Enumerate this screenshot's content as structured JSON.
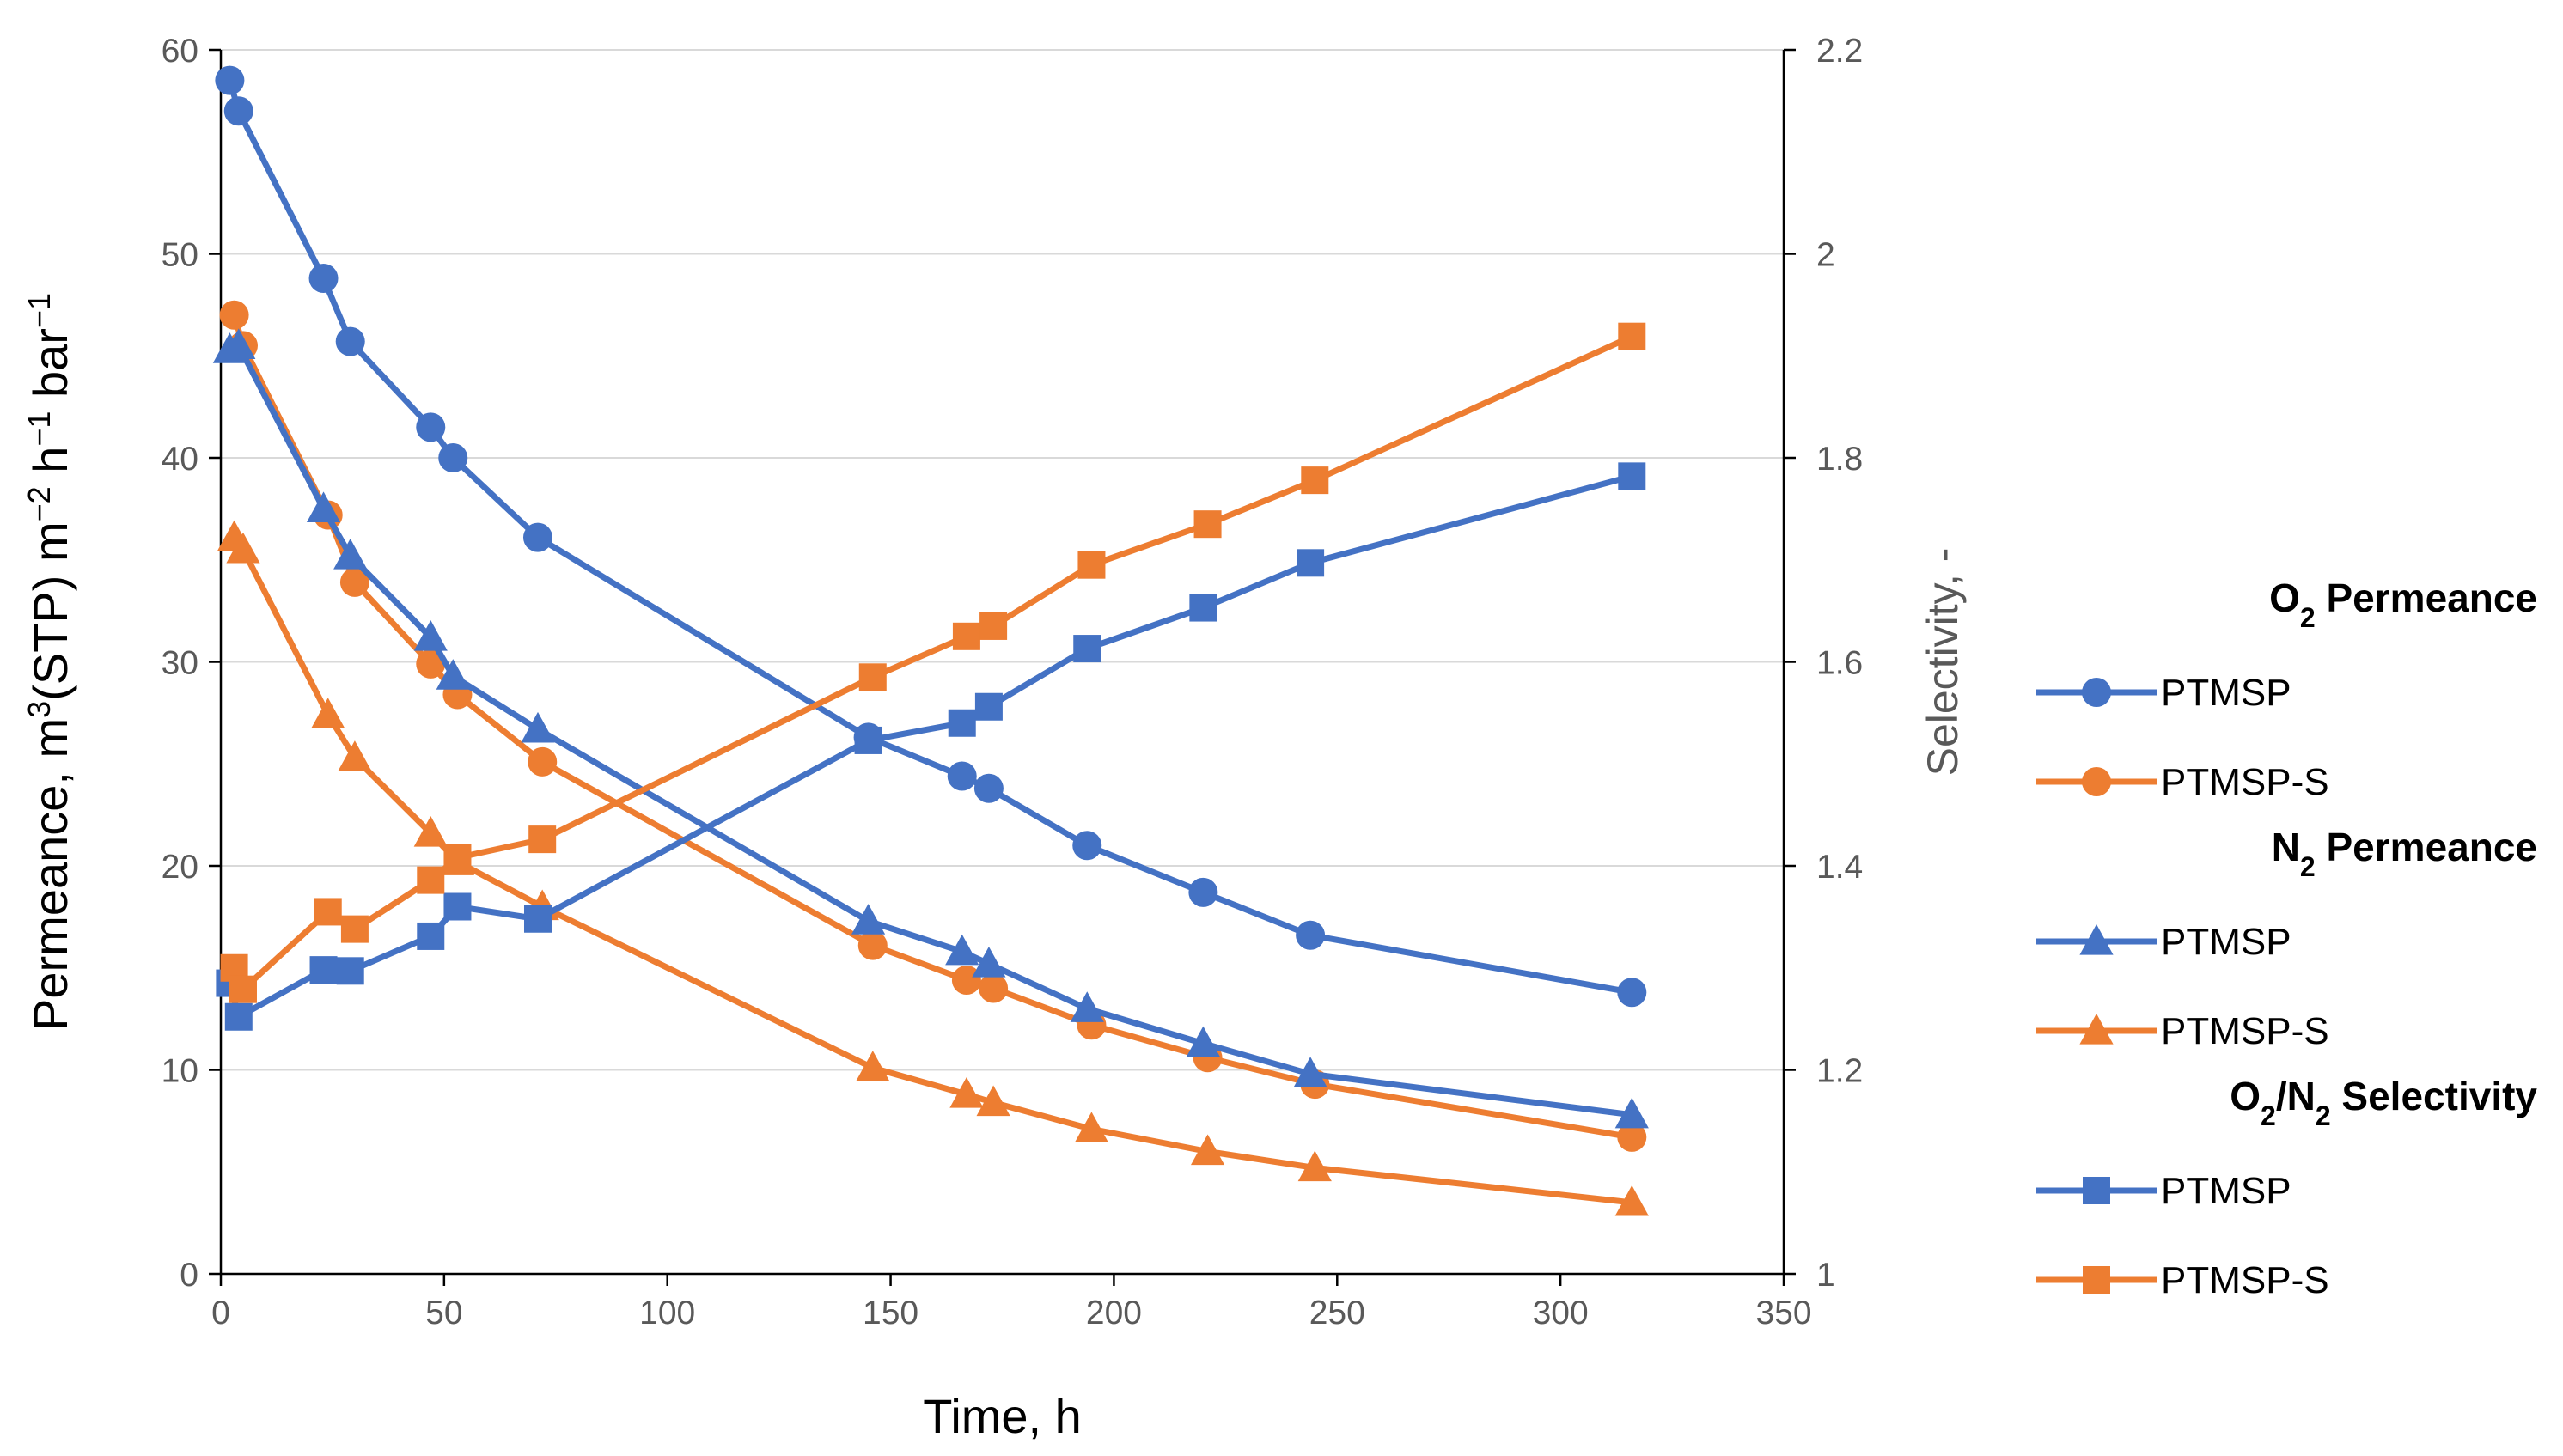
{
  "chart_data": {
    "type": "line",
    "xlabel": "Time, h",
    "ylabel": {
      "prefix": "Permeance, m",
      "sup1": "3",
      "mid1": "(STP) m",
      "sup2": "−2",
      "mid2": " h",
      "sup3": "−1",
      "mid3": " bar",
      "sup4": "−1"
    },
    "y2label": "Selectivity, -",
    "xlim": [
      0,
      350
    ],
    "ylim": [
      0,
      60
    ],
    "y2lim": [
      1,
      2.2
    ],
    "x_ticks": [
      0,
      50,
      100,
      150,
      200,
      250,
      300,
      350
    ],
    "y_ticks": [
      0,
      10,
      20,
      30,
      40,
      50,
      60
    ],
    "y2_ticks": [
      "1",
      "1.2",
      "1.4",
      "1.6",
      "1.8",
      "2",
      "2.2"
    ],
    "grid": true,
    "colors": {
      "blue": "#4472C4",
      "orange": "#ED7D31"
    },
    "legend_groups": [
      {
        "head": "O",
        "sub": "2",
        "tail": " Permeance"
      },
      {
        "head": "N",
        "sub": "2",
        "tail": " Permeance"
      },
      {
        "head": "O",
        "sub": "2",
        "mid": "/N",
        "sub2": "2",
        "tail": " Selectivity"
      }
    ],
    "series": [
      {
        "name": "PTMSP",
        "group": 0,
        "marker": "circle",
        "color": "blue",
        "axis": "left",
        "x": [
          2,
          4,
          23,
          29,
          47,
          52,
          71,
          145,
          166,
          172,
          194,
          220,
          244,
          316
        ],
        "y": [
          58.5,
          57.0,
          48.8,
          45.7,
          41.5,
          40.0,
          36.1,
          26.3,
          24.4,
          23.8,
          21.0,
          18.7,
          16.6,
          13.8
        ]
      },
      {
        "name": "PTMSP-S",
        "group": 0,
        "marker": "circle",
        "color": "orange",
        "axis": "left",
        "x": [
          3,
          5,
          24,
          30,
          47,
          53,
          72,
          146,
          167,
          173,
          195,
          221,
          245,
          316
        ],
        "y": [
          47.0,
          45.5,
          37.2,
          33.9,
          29.9,
          28.4,
          25.1,
          16.1,
          14.4,
          14.0,
          12.2,
          10.6,
          9.3,
          6.7
        ]
      },
      {
        "name": "PTMSP",
        "group": 1,
        "marker": "triangle",
        "color": "blue",
        "axis": "left",
        "x": [
          2,
          4,
          23,
          29,
          47,
          52,
          71,
          145,
          166,
          172,
          194,
          220,
          244,
          316
        ],
        "y": [
          45.3,
          45.5,
          37.5,
          35.2,
          31.2,
          29.3,
          26.7,
          17.3,
          15.8,
          15.2,
          13.0,
          11.3,
          9.8,
          7.8
        ]
      },
      {
        "name": "PTMSP-S",
        "group": 1,
        "marker": "triangle",
        "color": "orange",
        "axis": "left",
        "x": [
          3,
          5,
          24,
          30,
          47,
          53,
          72,
          146,
          167,
          173,
          195,
          221,
          245,
          316
        ],
        "y": [
          36.1,
          35.5,
          27.4,
          25.3,
          21.6,
          20.2,
          18.0,
          10.1,
          8.8,
          8.4,
          7.1,
          6.0,
          5.2,
          3.5
        ]
      },
      {
        "name": "PTMSP",
        "group": 2,
        "marker": "square",
        "color": "blue",
        "axis": "right",
        "x": [
          2,
          4,
          23,
          29,
          47,
          53,
          71,
          145,
          166,
          172,
          194,
          220,
          244,
          316
        ],
        "y": [
          1.285,
          1.252,
          1.298,
          1.297,
          1.331,
          1.36,
          1.348,
          1.523,
          1.54,
          1.556,
          1.613,
          1.653,
          1.697,
          1.782
        ]
      },
      {
        "name": "PTMSP-S",
        "group": 2,
        "marker": "square",
        "color": "orange",
        "axis": "right",
        "x": [
          3,
          5,
          24,
          30,
          47,
          53,
          72,
          146,
          167,
          173,
          195,
          221,
          245,
          316
        ],
        "y": [
          1.3,
          1.279,
          1.355,
          1.338,
          1.386,
          1.408,
          1.426,
          1.585,
          1.625,
          1.635,
          1.695,
          1.735,
          1.778,
          1.919
        ]
      }
    ]
  }
}
